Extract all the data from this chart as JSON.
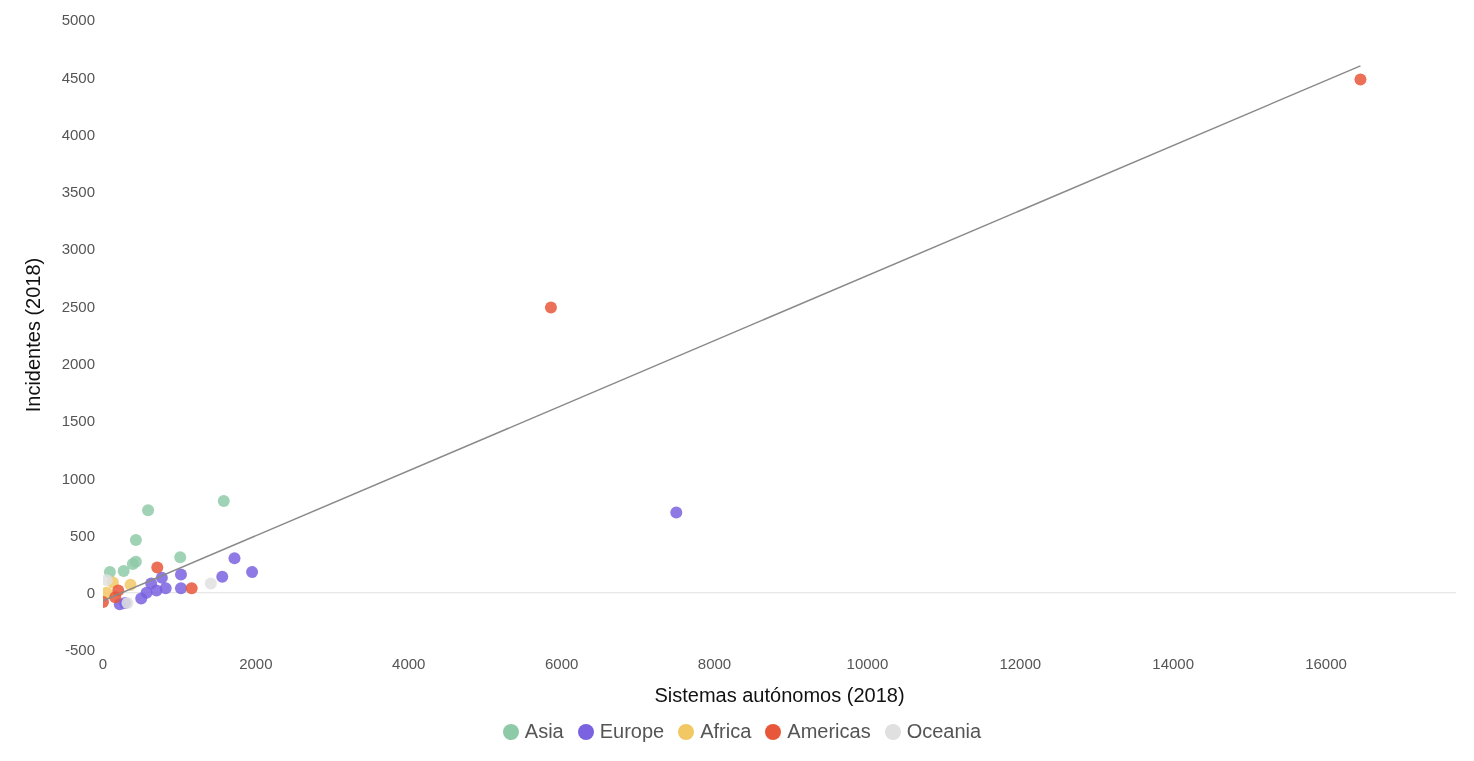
{
  "chart_data": {
    "type": "scatter",
    "xlabel": "Sistemas autónomos (2018)",
    "ylabel": "Incidentes (2018)",
    "xlim": [
      0,
      17700
    ],
    "xticks": [
      0,
      2000,
      4000,
      6000,
      8000,
      10000,
      12000,
      14000,
      16000
    ],
    "ylim": [
      -500,
      5000
    ],
    "yticks": [
      -500,
      0,
      500,
      1000,
      1500,
      2000,
      2500,
      3000,
      3500,
      4000,
      4500,
      5000
    ],
    "grid": false,
    "legend": "bottom",
    "marker": "circle",
    "ref_lines": [
      {
        "axis": "y",
        "value": 0,
        "color": "#e0e0e0"
      }
    ],
    "series": [
      {
        "name": "Asia",
        "color": "#8fcaa8",
        "x": [
          1580,
          590,
          430,
          430,
          390,
          1010,
          90,
          270
        ],
        "values": [
          800,
          720,
          460,
          270,
          250,
          310,
          180,
          190
        ]
      },
      {
        "name": "Europe",
        "color": "#7a62e0",
        "x": [
          7500,
          1720,
          1950,
          1560,
          1020,
          1020,
          820,
          770,
          630,
          570,
          500,
          700,
          220,
          290
        ],
        "values": [
          700,
          300,
          180,
          140,
          160,
          40,
          40,
          130,
          80,
          0,
          -50,
          20,
          -100,
          -90
        ]
      },
      {
        "name": "Africa",
        "color": "#f2c865",
        "x": [
          360,
          130,
          50
        ],
        "values": [
          70,
          90,
          0
        ]
      },
      {
        "name": "Americas",
        "color": "#e8573a",
        "x": [
          16450,
          5860,
          710,
          1160,
          200,
          160,
          0
        ],
        "values": [
          4480,
          2490,
          220,
          40,
          20,
          -40,
          -80
        ]
      },
      {
        "name": "Oceania",
        "color": "#e0e0e0",
        "x": [
          1410,
          50,
          320
        ],
        "values": [
          80,
          110,
          -90
        ]
      },
      {
        "type": "line",
        "color": "#8a8a8a",
        "x": [
          0,
          16450
        ],
        "values": [
          -70,
          4600
        ],
        "marker": "none"
      }
    ]
  }
}
